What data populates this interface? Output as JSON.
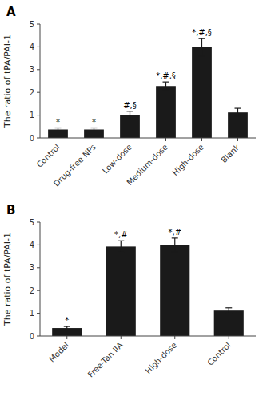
{
  "chart_data": [
    {
      "type": "bar",
      "title": "A",
      "categories": [
        "Control",
        "Drug-free NPs",
        "Low-dose",
        "Medium-dose",
        "High-dose",
        "Blank"
      ],
      "values": [
        0.37,
        0.37,
        1.02,
        2.28,
        3.98,
        1.12
      ],
      "errors": [
        0.07,
        0.07,
        0.15,
        0.18,
        0.38,
        0.18
      ],
      "annotations": [
        "*",
        "*",
        "#,§",
        "*,#,§",
        "*,#,§",
        null
      ],
      "ylabel": "The ratio of tPA/PAI-1",
      "ylim": [
        0,
        5
      ],
      "yticks": [
        0,
        1,
        2,
        3,
        4,
        5
      ],
      "color": "#1a1a1a",
      "grid": false
    },
    {
      "type": "bar",
      "title": "B",
      "categories": [
        "Model",
        "Free-Tan IIA",
        "High-dose",
        "Control"
      ],
      "values": [
        0.35,
        3.93,
        4.0,
        1.12
      ],
      "errors": [
        0.07,
        0.25,
        0.3,
        0.12
      ],
      "annotations": [
        "*",
        "*,#",
        "*,#",
        null
      ],
      "ylabel": "The ratio of tPA/PAI-1",
      "ylim": [
        0,
        5
      ],
      "yticks": [
        0,
        1,
        2,
        3,
        4,
        5
      ],
      "color": "#1a1a1a",
      "grid": false
    }
  ]
}
